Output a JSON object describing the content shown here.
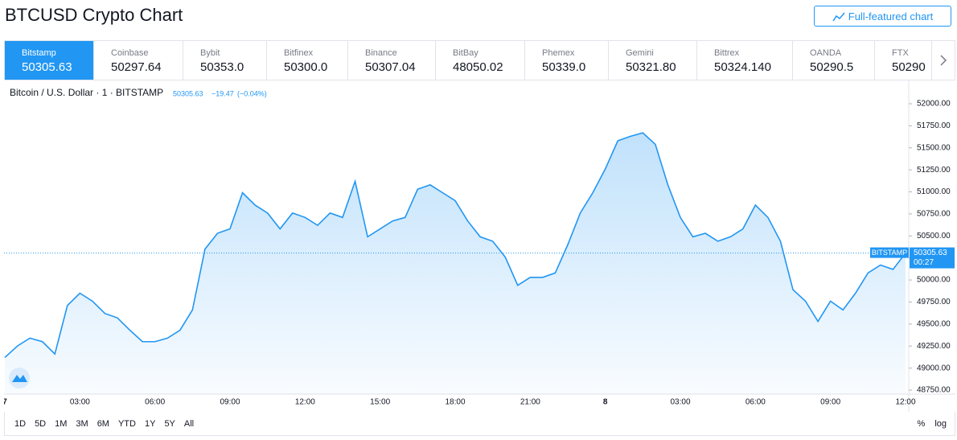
{
  "header": {
    "title": "BTCUSD Crypto Chart",
    "button": "Full-featured chart"
  },
  "exchanges": [
    {
      "name": "Bitstamp",
      "price": "50305.63"
    },
    {
      "name": "Coinbase",
      "price": "50297.64"
    },
    {
      "name": "Bybit",
      "price": "50353.0"
    },
    {
      "name": "Bitfinex",
      "price": "50300.0"
    },
    {
      "name": "Binance",
      "price": "50307.04"
    },
    {
      "name": "BitBay",
      "price": "48050.02"
    },
    {
      "name": "Phemex",
      "price": "50339.0"
    },
    {
      "name": "Gemini",
      "price": "50321.80"
    },
    {
      "name": "Bittrex",
      "price": "50324.140"
    },
    {
      "name": "OANDA",
      "price": "50290.5"
    },
    {
      "name": "FTX",
      "price": "50290"
    }
  ],
  "chart_data": {
    "type": "line",
    "categories": [
      "7",
      null,
      null,
      null,
      null,
      null,
      "03:00",
      null,
      null,
      null,
      null,
      null,
      "06:00",
      null,
      null,
      null,
      null,
      null,
      "09:00",
      null,
      null,
      null,
      null,
      null,
      "12:00",
      null,
      null,
      null,
      null,
      null,
      "15:00",
      null,
      null,
      null,
      null,
      null,
      "18:00",
      null,
      null,
      null,
      null,
      null,
      "21:00",
      null,
      null,
      null,
      null,
      null,
      "8",
      null,
      null,
      null,
      null,
      null,
      "03:00",
      null,
      null,
      null,
      null,
      null,
      "06:00",
      null,
      null,
      null,
      null,
      null,
      "09:00",
      null,
      null,
      null,
      null,
      null,
      "12:00"
    ],
    "series": [
      {
        "name": "Bitcoin / U.S. Dollar · 1 · BITSTAMP",
        "color": "#2196f3",
        "values": [
          49120,
          49250,
          49340,
          49300,
          49160,
          49710,
          49850,
          49760,
          49620,
          49570,
          49430,
          49300,
          49300,
          49340,
          49430,
          49660,
          50350,
          50530,
          50580,
          50990,
          50850,
          50760,
          50580,
          50760,
          50710,
          50620,
          50760,
          50710,
          51120,
          50490,
          50580,
          50670,
          50710,
          51030,
          51080,
          50990,
          50900,
          50670,
          50490,
          50440,
          50260,
          49940,
          50030,
          50030,
          50080,
          50400,
          50760,
          50990,
          51260,
          51580,
          51630,
          51670,
          51540,
          51080,
          50710,
          50490,
          50530,
          50440,
          50490,
          50580,
          50850,
          50710,
          50440,
          49890,
          49760,
          49530,
          49760,
          49660,
          49850,
          50080,
          50170,
          50120,
          50305.63
        ]
      }
    ],
    "last_price": 50305.63,
    "change": "−19.47",
    "change_pct": "(−0.04%)",
    "price_source": "BITSTAMP",
    "countdown": "00:27",
    "ylim": [
      48750,
      52000
    ],
    "yticks": [
      {
        "value": 48750,
        "label": "48750.00"
      },
      {
        "value": 49000,
        "label": "49000.00"
      },
      {
        "value": 49250,
        "label": "49250.00"
      },
      {
        "value": 49500,
        "label": "49500.00"
      },
      {
        "value": 49750,
        "label": "49750.00"
      },
      {
        "value": 50000,
        "label": "50000.00"
      },
      {
        "value": 50250,
        "label": "50250.00"
      },
      {
        "value": 50500,
        "label": "50500.00"
      },
      {
        "value": 50750,
        "label": "50750.00"
      },
      {
        "value": 51000,
        "label": "51000.00"
      },
      {
        "value": 51250,
        "label": "51250.00"
      },
      {
        "value": 51500,
        "label": "51500.00"
      },
      {
        "value": 51750,
        "label": "51750.00"
      },
      {
        "value": 52000,
        "label": "52000.00"
      }
    ]
  },
  "ranges": [
    "1D",
    "5D",
    "1M",
    "3M",
    "6M",
    "YTD",
    "1Y",
    "5Y",
    "All"
  ],
  "scale_options": [
    "%",
    "log"
  ]
}
